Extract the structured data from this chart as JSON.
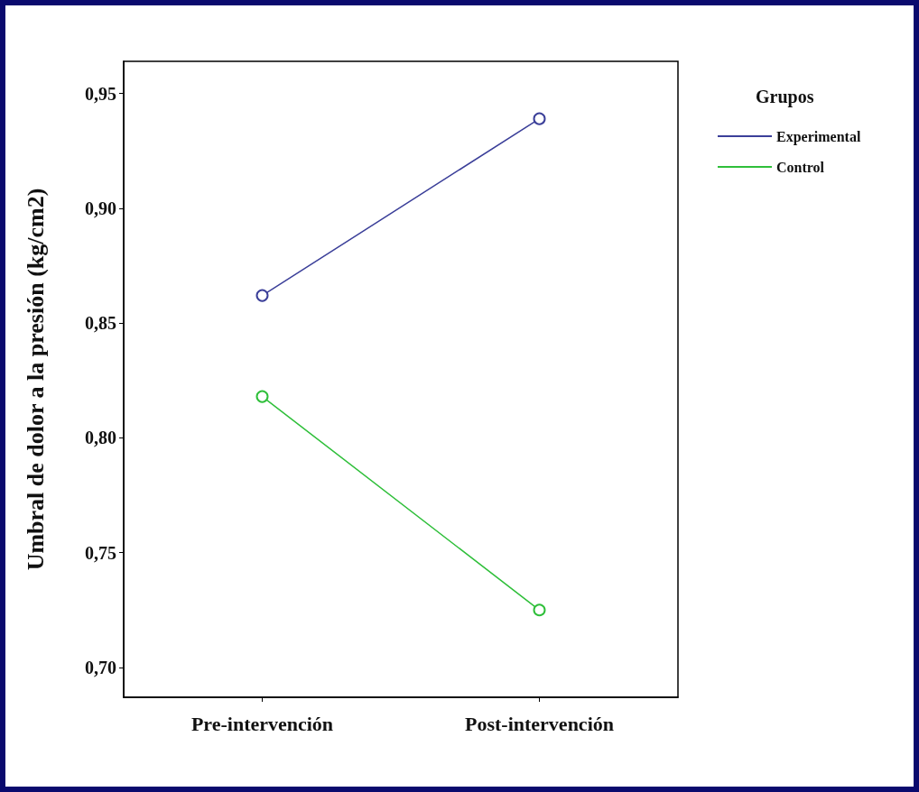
{
  "chart_data": {
    "type": "line",
    "ylabel": "Umbral de dolor a la presión (kg/cm2)",
    "legend_title": "Grupos",
    "categories": [
      "Pre-intervención",
      "Post-intervención"
    ],
    "series": [
      {
        "name": "Experimental",
        "color": "#3b3f99",
        "values": [
          0.862,
          0.939
        ]
      },
      {
        "name": "Control",
        "color": "#2fbf3a",
        "values": [
          0.818,
          0.725
        ]
      }
    ],
    "ylim": [
      0.687,
      0.964
    ],
    "yticks": [
      {
        "value": 0.7,
        "label": "0,70"
      },
      {
        "value": 0.75,
        "label": "0,75"
      },
      {
        "value": 0.8,
        "label": "0,80"
      },
      {
        "value": 0.85,
        "label": "0,85"
      },
      {
        "value": 0.9,
        "label": "0,90"
      },
      {
        "value": 0.95,
        "label": "0,95"
      }
    ],
    "grid": false,
    "legend": "top right",
    "marker": "circle",
    "line_style": "solid"
  }
}
